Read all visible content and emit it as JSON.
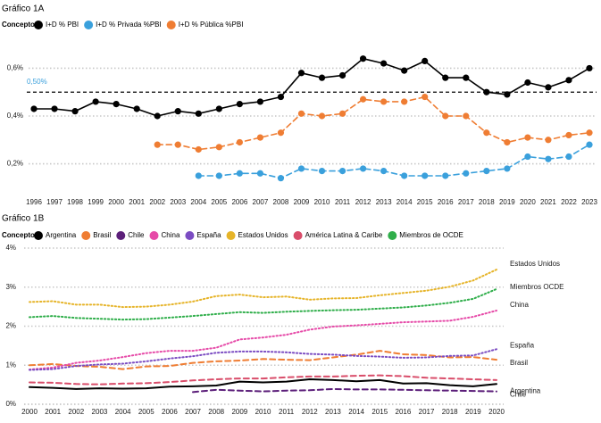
{
  "chart_data": [
    {
      "type": "line",
      "title": "Gráfico 1A",
      "legend_title": "Concepto",
      "legend_position": "top-left",
      "x": [
        "1996",
        "1997",
        "1998",
        "1999",
        "2000",
        "2001",
        "2002",
        "2003",
        "2004",
        "2005",
        "2006",
        "2007",
        "2008",
        "2009",
        "2010",
        "2011",
        "2012",
        "2013",
        "2014",
        "2015",
        "2016",
        "2017",
        "2018",
        "2019",
        "2020",
        "2021",
        "2022",
        "2023"
      ],
      "y_ticks": [
        "0,2%",
        "0,4%",
        "0,6%"
      ],
      "y_tick_values": [
        0.2,
        0.4,
        0.6
      ],
      "ylim": [
        0.12,
        0.68
      ],
      "reference_line": {
        "value": 0.5,
        "label": "0,50%"
      },
      "series": [
        {
          "name": "I+D % PBI",
          "color": "#000000",
          "style": "solid",
          "values": [
            0.43,
            0.43,
            0.42,
            0.46,
            0.45,
            0.43,
            0.4,
            0.42,
            0.41,
            0.43,
            0.45,
            0.46,
            0.48,
            0.58,
            0.56,
            0.57,
            0.64,
            0.62,
            0.59,
            0.63,
            0.56,
            0.56,
            0.5,
            0.49,
            0.54,
            0.52,
            0.55,
            0.6
          ]
        },
        {
          "name": "I+D % Privada %PBI",
          "color": "#3aa0dc",
          "style": "dashed",
          "values": [
            null,
            null,
            null,
            null,
            null,
            null,
            null,
            null,
            0.15,
            0.15,
            0.16,
            0.16,
            0.14,
            0.18,
            0.17,
            0.17,
            0.18,
            0.17,
            0.15,
            0.15,
            0.15,
            0.16,
            0.17,
            0.18,
            0.23,
            0.22,
            0.23,
            0.28
          ]
        },
        {
          "name": "I+D % Pública %PBI",
          "color": "#ef7d33",
          "style": "dashed",
          "values": [
            null,
            null,
            null,
            null,
            null,
            null,
            0.28,
            0.28,
            0.26,
            0.27,
            0.29,
            0.31,
            0.33,
            0.41,
            0.4,
            0.41,
            0.47,
            0.46,
            0.46,
            0.48,
            0.4,
            0.4,
            0.33,
            0.29,
            0.31,
            0.3,
            0.32,
            0.33
          ]
        }
      ]
    },
    {
      "type": "line",
      "title": "Gráfico 1B",
      "legend_title": "Concepto",
      "legend_position": "top-left",
      "x": [
        "2000",
        "2001",
        "2002",
        "2003",
        "2004",
        "2005",
        "2006",
        "2007",
        "2008",
        "2009",
        "2010",
        "2011",
        "2012",
        "2013",
        "2014",
        "2015",
        "2016",
        "2017",
        "2018",
        "2019",
        "2020"
      ],
      "y_ticks": [
        "0%",
        "1%",
        "2%",
        "3%",
        "4%"
      ],
      "y_tick_values": [
        0,
        1,
        2,
        3,
        4
      ],
      "ylim": [
        0,
        4
      ],
      "series": [
        {
          "name": "Argentina",
          "color": "#000000",
          "style": "solid",
          "label": "Argentina",
          "values": [
            0.44,
            0.42,
            0.39,
            0.41,
            0.4,
            0.41,
            0.45,
            0.46,
            0.48,
            0.58,
            0.56,
            0.58,
            0.64,
            0.62,
            0.59,
            0.62,
            0.53,
            0.54,
            0.49,
            0.46,
            0.52
          ]
        },
        {
          "name": "Brasil",
          "color": "#ef7d33",
          "style": "dashed",
          "label": "Brasil",
          "values": [
            1.0,
            1.03,
            0.98,
            0.96,
            0.9,
            0.97,
            0.98,
            1.06,
            1.1,
            1.12,
            1.16,
            1.14,
            1.13,
            1.2,
            1.27,
            1.37,
            1.28,
            1.26,
            1.2,
            1.21,
            1.14
          ]
        },
        {
          "name": "Chile",
          "color": "#5c1f7a",
          "style": "dashed",
          "label": "Chile",
          "values": [
            null,
            null,
            null,
            null,
            null,
            null,
            null,
            0.31,
            0.37,
            0.35,
            0.33,
            0.35,
            0.36,
            0.39,
            0.38,
            0.38,
            0.37,
            0.36,
            0.35,
            0.34,
            0.33
          ]
        },
        {
          "name": "China",
          "color": "#e64aa8",
          "style": "dotted",
          "label": "China",
          "values": [
            0.89,
            0.94,
            1.06,
            1.12,
            1.21,
            1.31,
            1.37,
            1.37,
            1.45,
            1.66,
            1.71,
            1.78,
            1.91,
            1.99,
            2.02,
            2.06,
            2.1,
            2.12,
            2.14,
            2.24,
            2.4
          ]
        },
        {
          "name": "España",
          "color": "#7b4cc2",
          "style": "dotted",
          "label": "España",
          "values": [
            0.88,
            0.9,
            0.98,
            1.02,
            1.04,
            1.1,
            1.17,
            1.23,
            1.32,
            1.35,
            1.35,
            1.33,
            1.29,
            1.27,
            1.24,
            1.22,
            1.19,
            1.2,
            1.24,
            1.25,
            1.41
          ]
        },
        {
          "name": "Estados Unidos",
          "color": "#e6b429",
          "style": "dotted",
          "label": "Estados Unidos",
          "values": [
            2.62,
            2.64,
            2.55,
            2.55,
            2.49,
            2.5,
            2.55,
            2.63,
            2.77,
            2.81,
            2.74,
            2.76,
            2.68,
            2.71,
            2.72,
            2.79,
            2.85,
            2.91,
            3.01,
            3.17,
            3.45
          ]
        },
        {
          "name": "América Latina & Caribe",
          "color": "#d94d6a",
          "style": "dashed",
          "label": "",
          "values": [
            0.56,
            0.55,
            0.52,
            0.51,
            0.53,
            0.54,
            0.57,
            0.61,
            0.64,
            0.66,
            0.66,
            0.69,
            0.71,
            0.71,
            0.73,
            0.74,
            0.72,
            0.68,
            0.66,
            0.64,
            0.62
          ]
        },
        {
          "name": "Miembros de OCDE",
          "color": "#2fae4a",
          "style": "dotted",
          "label": "Miembros OCDE",
          "values": [
            2.23,
            2.26,
            2.21,
            2.19,
            2.17,
            2.18,
            2.22,
            2.26,
            2.31,
            2.36,
            2.34,
            2.37,
            2.39,
            2.41,
            2.42,
            2.45,
            2.48,
            2.53,
            2.6,
            2.7,
            2.95
          ]
        }
      ]
    }
  ]
}
